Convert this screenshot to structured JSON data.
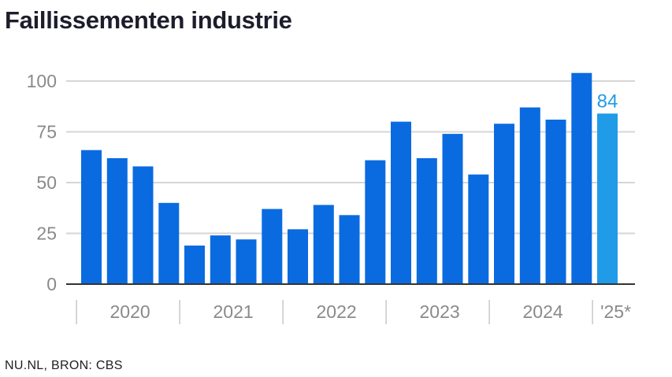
{
  "title": "Faillissementen industrie",
  "source": "NU.NL, BRON: CBS",
  "colors": {
    "bar": "#0a6be0",
    "highlight": "#1f9be8",
    "grid": "#d6d6d6",
    "axis": "#333333",
    "tick_text": "#8a8a8a"
  },
  "chart_data": {
    "type": "bar",
    "title": "Faillissementen industrie",
    "xlabel": "",
    "ylabel": "",
    "ylim": [
      0,
      100
    ],
    "yticks": [
      0,
      25,
      50,
      75,
      100
    ],
    "grid": true,
    "groups": [
      {
        "label": "2020",
        "count": 4
      },
      {
        "label": "2021",
        "count": 4
      },
      {
        "label": "2022",
        "count": 4
      },
      {
        "label": "2023",
        "count": 4
      },
      {
        "label": "2024",
        "count": 4
      },
      {
        "label": "'25*",
        "count": 1
      }
    ],
    "values": [
      66,
      62,
      58,
      40,
      19,
      24,
      22,
      37,
      27,
      39,
      34,
      61,
      80,
      62,
      74,
      54,
      79,
      87,
      81,
      104,
      84
    ],
    "highlight_index": 20,
    "data_labels": [
      {
        "index": 20,
        "text": "84"
      }
    ]
  }
}
